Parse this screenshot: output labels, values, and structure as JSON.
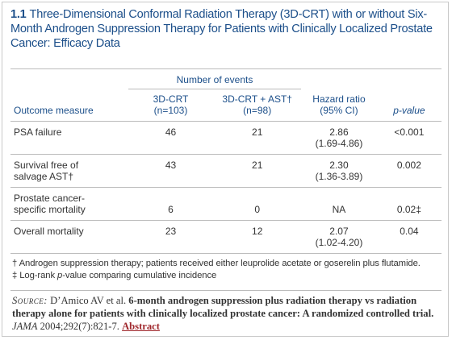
{
  "header": {
    "number": "1.1",
    "title": "Three-Dimensional Conformal Radiation Therapy (3D-CRT) with or without Six-Month Androgen Suppression Therapy for Patients with Clinically Localized Prostate Cancer: Efficacy Data"
  },
  "table": {
    "group_header": "Number of events",
    "columns": [
      [
        "Outcome measure"
      ],
      [
        "3D-CRT",
        "(n=103)"
      ],
      [
        "3D-CRT + AST†",
        "(n=98)"
      ],
      [
        "Hazard ratio",
        "(95% CI)"
      ],
      [
        "p-value"
      ]
    ],
    "rows": [
      [
        [
          "PSA failure"
        ],
        [
          "46"
        ],
        [
          "21"
        ],
        [
          "2.86",
          "(1.69-4.86)"
        ],
        [
          "<0.001"
        ]
      ],
      [
        [
          "Survival free of",
          "salvage AST†"
        ],
        [
          "43"
        ],
        [
          "21"
        ],
        [
          "2.30",
          "(1.36-3.89)"
        ],
        [
          "0.002"
        ]
      ],
      [
        [
          "Prostate cancer-",
          "specific mortality"
        ],
        [
          "6"
        ],
        [
          "0"
        ],
        [
          "NA"
        ],
        [
          "0.02‡"
        ]
      ],
      [
        [
          "Overall mortality"
        ],
        [
          "23"
        ],
        [
          "12"
        ],
        [
          "2.07",
          "(1.02-4.20)"
        ],
        [
          "0.04"
        ]
      ]
    ]
  },
  "footnotes": [
    [
      "† Androgen suppression therapy; patients received either leuprolide acetate or goserelin plus flutamide."
    ],
    [
      "‡ Log-rank ",
      "p",
      "-value comparing cumulative incidence"
    ]
  ],
  "source": {
    "label": "Source:",
    "authors": "D’Amico AV et al.",
    "title": "6-month androgen suppression plus radiation therapy vs radiation therapy alone for patients with clinically localized prostate cancer: A randomized controlled trial.",
    "journal": "JAMA",
    "citation": "2004;292(7):821-7.",
    "link": "Abstract"
  }
}
